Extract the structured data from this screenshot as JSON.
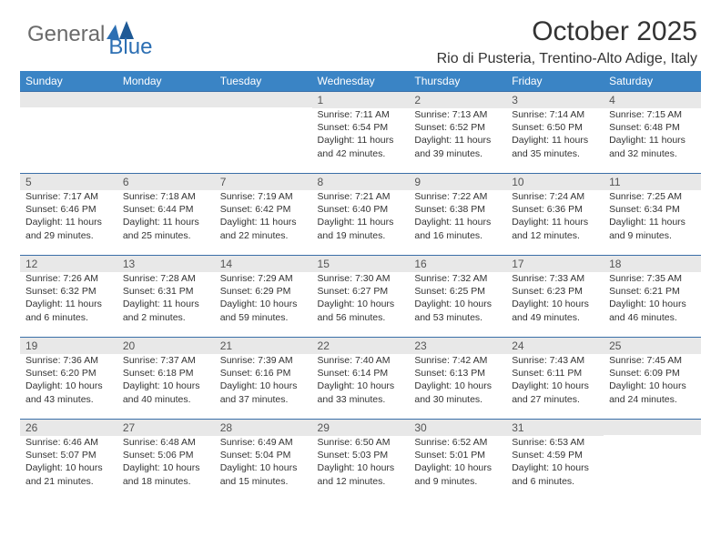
{
  "logo": {
    "text_gray": "General",
    "text_blue": "Blue"
  },
  "header": {
    "month_title": "October 2025",
    "location": "Rio di Pusteria, Trentino-Alto Adige, Italy"
  },
  "colors": {
    "header_bg": "#3a84c5",
    "header_text": "#ffffff",
    "daynum_bg": "#e8e8e8",
    "daynum_border": "#3a6fa8",
    "body_text": "#333333",
    "logo_gray": "#6a6a6a",
    "logo_blue": "#2c6fb3"
  },
  "weekdays": [
    "Sunday",
    "Monday",
    "Tuesday",
    "Wednesday",
    "Thursday",
    "Friday",
    "Saturday"
  ],
  "weeks": [
    [
      null,
      null,
      null,
      {
        "n": "1",
        "sr": "Sunrise: 7:11 AM",
        "ss": "Sunset: 6:54 PM",
        "d1": "Daylight: 11 hours",
        "d2": "and 42 minutes."
      },
      {
        "n": "2",
        "sr": "Sunrise: 7:13 AM",
        "ss": "Sunset: 6:52 PM",
        "d1": "Daylight: 11 hours",
        "d2": "and 39 minutes."
      },
      {
        "n": "3",
        "sr": "Sunrise: 7:14 AM",
        "ss": "Sunset: 6:50 PM",
        "d1": "Daylight: 11 hours",
        "d2": "and 35 minutes."
      },
      {
        "n": "4",
        "sr": "Sunrise: 7:15 AM",
        "ss": "Sunset: 6:48 PM",
        "d1": "Daylight: 11 hours",
        "d2": "and 32 minutes."
      }
    ],
    [
      {
        "n": "5",
        "sr": "Sunrise: 7:17 AM",
        "ss": "Sunset: 6:46 PM",
        "d1": "Daylight: 11 hours",
        "d2": "and 29 minutes."
      },
      {
        "n": "6",
        "sr": "Sunrise: 7:18 AM",
        "ss": "Sunset: 6:44 PM",
        "d1": "Daylight: 11 hours",
        "d2": "and 25 minutes."
      },
      {
        "n": "7",
        "sr": "Sunrise: 7:19 AM",
        "ss": "Sunset: 6:42 PM",
        "d1": "Daylight: 11 hours",
        "d2": "and 22 minutes."
      },
      {
        "n": "8",
        "sr": "Sunrise: 7:21 AM",
        "ss": "Sunset: 6:40 PM",
        "d1": "Daylight: 11 hours",
        "d2": "and 19 minutes."
      },
      {
        "n": "9",
        "sr": "Sunrise: 7:22 AM",
        "ss": "Sunset: 6:38 PM",
        "d1": "Daylight: 11 hours",
        "d2": "and 16 minutes."
      },
      {
        "n": "10",
        "sr": "Sunrise: 7:24 AM",
        "ss": "Sunset: 6:36 PM",
        "d1": "Daylight: 11 hours",
        "d2": "and 12 minutes."
      },
      {
        "n": "11",
        "sr": "Sunrise: 7:25 AM",
        "ss": "Sunset: 6:34 PM",
        "d1": "Daylight: 11 hours",
        "d2": "and 9 minutes."
      }
    ],
    [
      {
        "n": "12",
        "sr": "Sunrise: 7:26 AM",
        "ss": "Sunset: 6:32 PM",
        "d1": "Daylight: 11 hours",
        "d2": "and 6 minutes."
      },
      {
        "n": "13",
        "sr": "Sunrise: 7:28 AM",
        "ss": "Sunset: 6:31 PM",
        "d1": "Daylight: 11 hours",
        "d2": "and 2 minutes."
      },
      {
        "n": "14",
        "sr": "Sunrise: 7:29 AM",
        "ss": "Sunset: 6:29 PM",
        "d1": "Daylight: 10 hours",
        "d2": "and 59 minutes."
      },
      {
        "n": "15",
        "sr": "Sunrise: 7:30 AM",
        "ss": "Sunset: 6:27 PM",
        "d1": "Daylight: 10 hours",
        "d2": "and 56 minutes."
      },
      {
        "n": "16",
        "sr": "Sunrise: 7:32 AM",
        "ss": "Sunset: 6:25 PM",
        "d1": "Daylight: 10 hours",
        "d2": "and 53 minutes."
      },
      {
        "n": "17",
        "sr": "Sunrise: 7:33 AM",
        "ss": "Sunset: 6:23 PM",
        "d1": "Daylight: 10 hours",
        "d2": "and 49 minutes."
      },
      {
        "n": "18",
        "sr": "Sunrise: 7:35 AM",
        "ss": "Sunset: 6:21 PM",
        "d1": "Daylight: 10 hours",
        "d2": "and 46 minutes."
      }
    ],
    [
      {
        "n": "19",
        "sr": "Sunrise: 7:36 AM",
        "ss": "Sunset: 6:20 PM",
        "d1": "Daylight: 10 hours",
        "d2": "and 43 minutes."
      },
      {
        "n": "20",
        "sr": "Sunrise: 7:37 AM",
        "ss": "Sunset: 6:18 PM",
        "d1": "Daylight: 10 hours",
        "d2": "and 40 minutes."
      },
      {
        "n": "21",
        "sr": "Sunrise: 7:39 AM",
        "ss": "Sunset: 6:16 PM",
        "d1": "Daylight: 10 hours",
        "d2": "and 37 minutes."
      },
      {
        "n": "22",
        "sr": "Sunrise: 7:40 AM",
        "ss": "Sunset: 6:14 PM",
        "d1": "Daylight: 10 hours",
        "d2": "and 33 minutes."
      },
      {
        "n": "23",
        "sr": "Sunrise: 7:42 AM",
        "ss": "Sunset: 6:13 PM",
        "d1": "Daylight: 10 hours",
        "d2": "and 30 minutes."
      },
      {
        "n": "24",
        "sr": "Sunrise: 7:43 AM",
        "ss": "Sunset: 6:11 PM",
        "d1": "Daylight: 10 hours",
        "d2": "and 27 minutes."
      },
      {
        "n": "25",
        "sr": "Sunrise: 7:45 AM",
        "ss": "Sunset: 6:09 PM",
        "d1": "Daylight: 10 hours",
        "d2": "and 24 minutes."
      }
    ],
    [
      {
        "n": "26",
        "sr": "Sunrise: 6:46 AM",
        "ss": "Sunset: 5:07 PM",
        "d1": "Daylight: 10 hours",
        "d2": "and 21 minutes."
      },
      {
        "n": "27",
        "sr": "Sunrise: 6:48 AM",
        "ss": "Sunset: 5:06 PM",
        "d1": "Daylight: 10 hours",
        "d2": "and 18 minutes."
      },
      {
        "n": "28",
        "sr": "Sunrise: 6:49 AM",
        "ss": "Sunset: 5:04 PM",
        "d1": "Daylight: 10 hours",
        "d2": "and 15 minutes."
      },
      {
        "n": "29",
        "sr": "Sunrise: 6:50 AM",
        "ss": "Sunset: 5:03 PM",
        "d1": "Daylight: 10 hours",
        "d2": "and 12 minutes."
      },
      {
        "n": "30",
        "sr": "Sunrise: 6:52 AM",
        "ss": "Sunset: 5:01 PM",
        "d1": "Daylight: 10 hours",
        "d2": "and 9 minutes."
      },
      {
        "n": "31",
        "sr": "Sunrise: 6:53 AM",
        "ss": "Sunset: 4:59 PM",
        "d1": "Daylight: 10 hours",
        "d2": "and 6 minutes."
      },
      null
    ]
  ]
}
